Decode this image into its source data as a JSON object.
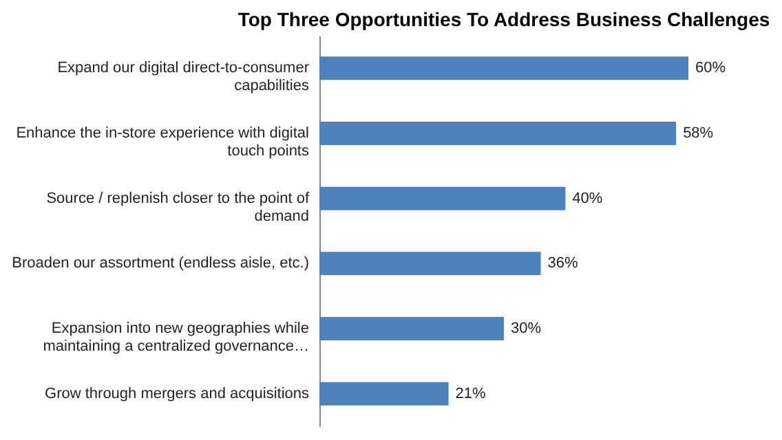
{
  "chart_data": {
    "type": "bar",
    "orientation": "horizontal",
    "title": "Top Three Opportunities To Address Business Challenges",
    "categories": [
      "Expand our digital direct-to-consumer capabilities",
      "Enhance the in-store experience with digital touch points",
      "Source / replenish closer to the point of demand",
      "Broaden our assortment (endless aisle, etc.)",
      "Expansion into new geographies while maintaining a centralized governance…",
      "Grow through mergers and acquisitions"
    ],
    "values": [
      60,
      58,
      40,
      36,
      30,
      21
    ],
    "value_labels": [
      "60%",
      "58%",
      "40%",
      "36%",
      "30%",
      "21%"
    ],
    "color": "#4f81bd"
  }
}
